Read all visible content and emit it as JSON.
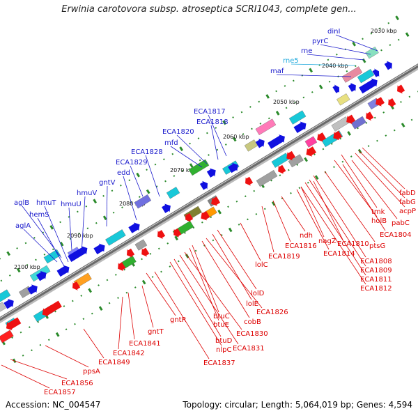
{
  "title": "Erwinia carotovora subsp. atroseptica SCRI1043, complete gen...",
  "footer": {
    "accession": "Accession: NC_004547",
    "topology": "Topology: circular; Length: 5,064,019 bp; Genes: 4,594"
  },
  "colors": {
    "forward_label": "#1a1acc",
    "reverse_label": "#dd0000",
    "rna_label": "#22aadd",
    "backbone": "#6a6a6a",
    "tick": "#2a8a2a",
    "forward_gene": "#1010e0",
    "reverse_gene": "#ee1111"
  },
  "scale_labels": [
    {
      "text": "2030 kbp"
    },
    {
      "text": "2040 kbp"
    },
    {
      "text": "2050 kbp"
    },
    {
      "text": "2060 kbp"
    },
    {
      "text": "2070 kbp"
    },
    {
      "text": "2080 kbp"
    },
    {
      "text": "2090 kbp"
    },
    {
      "text": "2100 kbp"
    }
  ],
  "forward_genes": [
    {
      "name": "dinI"
    },
    {
      "name": "pyrC"
    },
    {
      "name": "rne"
    },
    {
      "name": "rne5"
    },
    {
      "name": "maf"
    },
    {
      "name": "ECA1817"
    },
    {
      "name": "ECA1818"
    },
    {
      "name": "ECA1820"
    },
    {
      "name": "mfd"
    },
    {
      "name": "ECA1828"
    },
    {
      "name": "ECA1829"
    },
    {
      "name": "edd"
    },
    {
      "name": "gntV"
    },
    {
      "name": "hmuV"
    },
    {
      "name": "aglB"
    },
    {
      "name": "hmuT"
    },
    {
      "name": "hemS"
    },
    {
      "name": "hmuU"
    },
    {
      "name": "aglA"
    }
  ],
  "reverse_genes": [
    {
      "name": "fabD"
    },
    {
      "name": "fabG"
    },
    {
      "name": "acpP"
    },
    {
      "name": "tmk"
    },
    {
      "name": "pabC"
    },
    {
      "name": "holB"
    },
    {
      "name": "ECA1804"
    },
    {
      "name": "ptsG"
    },
    {
      "name": "ECA1808"
    },
    {
      "name": "ECA1810"
    },
    {
      "name": "ECA1809"
    },
    {
      "name": "nagZ"
    },
    {
      "name": "ECA1811"
    },
    {
      "name": "ECA1814"
    },
    {
      "name": "ECA1812"
    },
    {
      "name": "ndh"
    },
    {
      "name": "ECA1816"
    },
    {
      "name": "ECA1819"
    },
    {
      "name": "lolC"
    },
    {
      "name": "lolD"
    },
    {
      "name": "lolE"
    },
    {
      "name": "ECA1826"
    },
    {
      "name": "cobB"
    },
    {
      "name": "btuC"
    },
    {
      "name": "btuE"
    },
    {
      "name": "ECA1830"
    },
    {
      "name": "ECA1831"
    },
    {
      "name": "btuD"
    },
    {
      "name": "nlpC"
    },
    {
      "name": "ECA1837"
    },
    {
      "name": "gntR"
    },
    {
      "name": "gntT"
    },
    {
      "name": "ECA1841"
    },
    {
      "name": "ECA1842"
    },
    {
      "name": "ECA1849"
    },
    {
      "name": "ppsA"
    },
    {
      "name": "ECA1856"
    },
    {
      "name": "ECA1857"
    }
  ]
}
